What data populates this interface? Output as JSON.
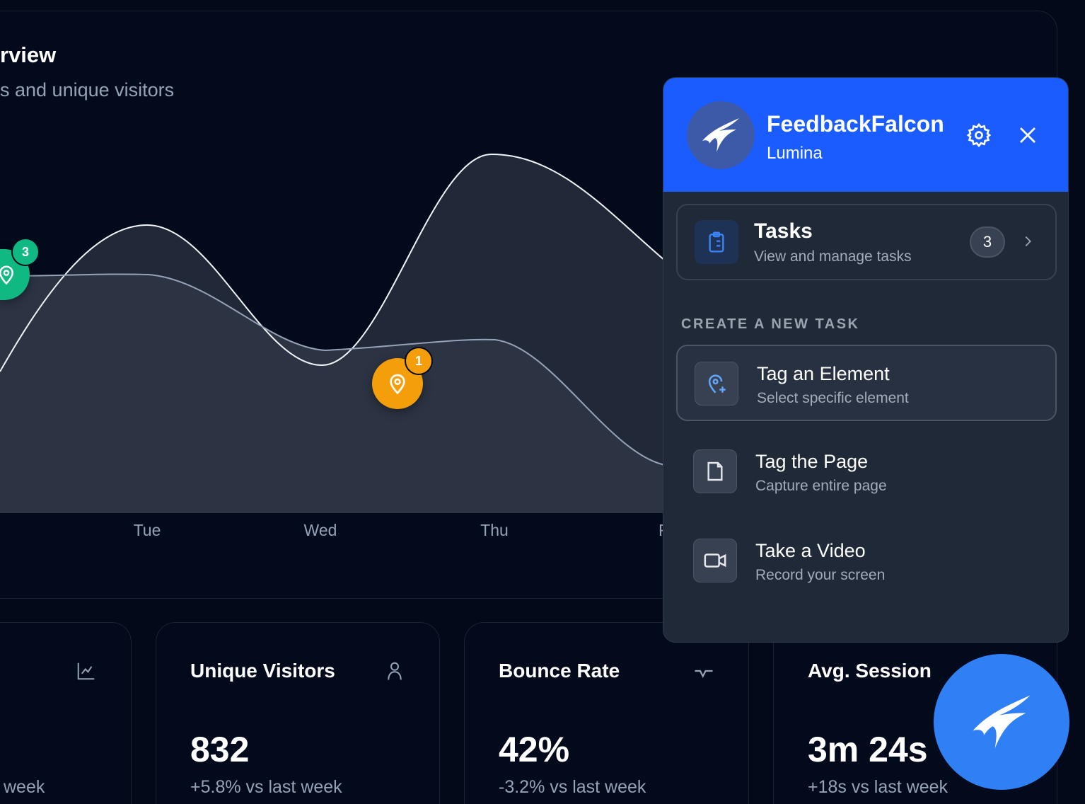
{
  "overview": {
    "title": "rview",
    "subtitle": "s and unique visitors"
  },
  "chart_data": {
    "type": "area",
    "categories": [
      "Tue",
      "Wed",
      "Thu",
      "F"
    ]
  },
  "markers": [
    {
      "count": "3",
      "color": "#10b981"
    },
    {
      "count": "1",
      "color": "#f59e0b"
    }
  ],
  "stats": [
    {
      "label": "",
      "value": "",
      "change": "week",
      "icon": "line-chart-icon"
    },
    {
      "label": "Unique Visitors",
      "value": "832",
      "change": "+5.8% vs last week",
      "icon": "user-icon"
    },
    {
      "label": "Bounce Rate",
      "value": "42%",
      "change": "-3.2% vs last week",
      "icon": "trending-down-icon"
    },
    {
      "label": "Avg. Session",
      "value": "3m 24s",
      "change": "+18s vs last week",
      "icon": "clock-icon"
    }
  ],
  "panel": {
    "brand": "FeedbackFalcon",
    "org": "Lumina",
    "accent": "#1a5cff",
    "tasks": {
      "title": "Tasks",
      "subtitle": "View and manage tasks",
      "count": "3"
    },
    "section_label": "CREATE A NEW TASK",
    "options": [
      {
        "title": "Tag an Element",
        "subtitle": "Select specific element",
        "icon": "map-pin-plus-icon"
      },
      {
        "title": "Tag the Page",
        "subtitle": "Capture entire page",
        "icon": "file-icon"
      },
      {
        "title": "Take a Video",
        "subtitle": "Record your screen",
        "icon": "video-icon"
      }
    ]
  }
}
